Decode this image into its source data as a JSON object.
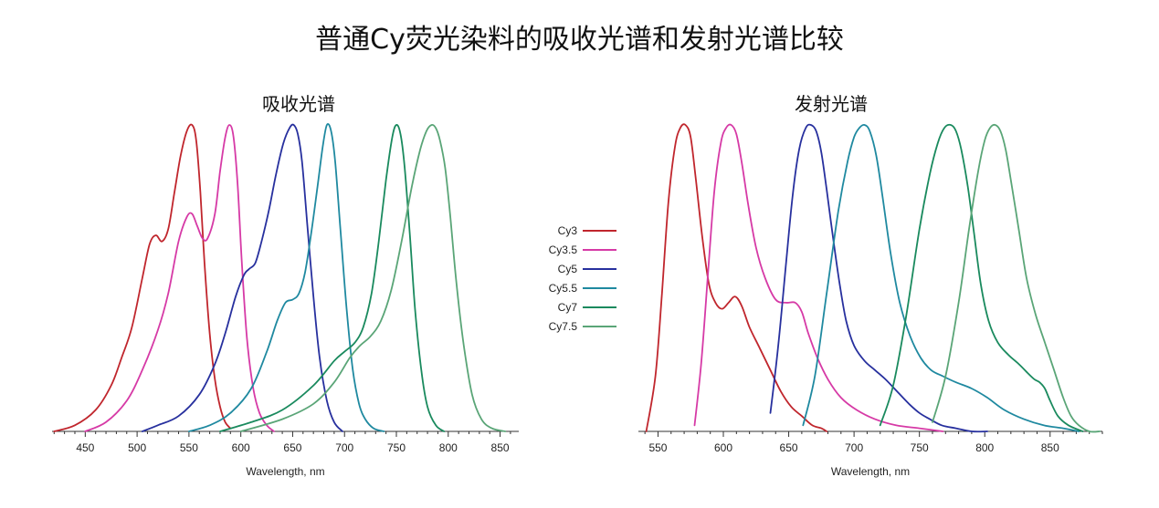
{
  "title": "普通Cy荧光染料的吸收光谱和发射光谱比较",
  "legend": [
    {
      "name": "Cy3",
      "color": "#c0262d"
    },
    {
      "name": "Cy3.5",
      "color": "#d63aa6"
    },
    {
      "name": "Cy5",
      "color": "#27309e"
    },
    {
      "name": "Cy5.5",
      "color": "#1f89a0"
    },
    {
      "name": "Cy7",
      "color": "#1a8a5e"
    },
    {
      "name": "Cy7.5",
      "color": "#5aa577"
    }
  ],
  "chart_data": [
    {
      "type": "line",
      "title": "吸收光谱",
      "xlabel": "Wavelength, nm",
      "ylabel": "",
      "xlim": [
        418,
        868
      ],
      "ylim": [
        0,
        1
      ],
      "xticks": [
        450,
        500,
        550,
        600,
        650,
        700,
        750,
        800,
        850
      ],
      "series": [
        {
          "name": "Cy3",
          "color": "#c0262d",
          "x": [
            420,
            440,
            460,
            475,
            485,
            495,
            505,
            512,
            518,
            524,
            530,
            536,
            542,
            548,
            553,
            557,
            561,
            565,
            570,
            575,
            580,
            585,
            590
          ],
          "y": [
            0.0,
            0.02,
            0.07,
            0.15,
            0.24,
            0.34,
            0.5,
            0.61,
            0.64,
            0.62,
            0.66,
            0.78,
            0.9,
            0.98,
            1.0,
            0.95,
            0.78,
            0.55,
            0.32,
            0.17,
            0.08,
            0.03,
            0.01
          ]
        },
        {
          "name": "Cy3.5",
          "color": "#d63aa6",
          "x": [
            450,
            470,
            490,
            505,
            520,
            530,
            540,
            548,
            553,
            558,
            563,
            568,
            575,
            580,
            585,
            589,
            593,
            597,
            601,
            606,
            612,
            618,
            625,
            632
          ],
          "y": [
            0.0,
            0.03,
            0.1,
            0.2,
            0.33,
            0.45,
            0.62,
            0.7,
            0.71,
            0.67,
            0.63,
            0.63,
            0.71,
            0.85,
            0.96,
            1.0,
            0.96,
            0.8,
            0.55,
            0.3,
            0.14,
            0.06,
            0.02,
            0.0
          ]
        },
        {
          "name": "Cy5",
          "color": "#27309e",
          "x": [
            505,
            520,
            540,
            560,
            575,
            585,
            595,
            603,
            608,
            614,
            620,
            627,
            634,
            641,
            647,
            651,
            655,
            659,
            664,
            670,
            676,
            683,
            690,
            698
          ],
          "y": [
            0.0,
            0.02,
            0.05,
            0.12,
            0.22,
            0.32,
            0.44,
            0.51,
            0.53,
            0.55,
            0.62,
            0.72,
            0.84,
            0.94,
            0.99,
            1.0,
            0.97,
            0.88,
            0.68,
            0.44,
            0.24,
            0.1,
            0.03,
            0.0
          ]
        },
        {
          "name": "Cy5.5",
          "color": "#1f89a0",
          "x": [
            550,
            570,
            590,
            610,
            625,
            635,
            643,
            650,
            656,
            662,
            668,
            674,
            679,
            683,
            687,
            691,
            696,
            702,
            708,
            714,
            720,
            728,
            738
          ],
          "y": [
            0.0,
            0.02,
            0.06,
            0.14,
            0.26,
            0.36,
            0.42,
            0.43,
            0.45,
            0.52,
            0.65,
            0.8,
            0.93,
            1.0,
            0.98,
            0.88,
            0.66,
            0.4,
            0.2,
            0.09,
            0.04,
            0.01,
            0.0
          ]
        },
        {
          "name": "Cy7",
          "color": "#1a8a5e",
          "x": [
            580,
            610,
            640,
            670,
            690,
            700,
            710,
            718,
            726,
            733,
            740,
            746,
            750,
            754,
            758,
            763,
            768,
            774,
            780,
            788,
            796
          ],
          "y": [
            0.0,
            0.03,
            0.07,
            0.15,
            0.23,
            0.26,
            0.29,
            0.34,
            0.45,
            0.62,
            0.82,
            0.96,
            1.0,
            0.97,
            0.86,
            0.64,
            0.4,
            0.2,
            0.08,
            0.02,
            0.0
          ]
        },
        {
          "name": "Cy7.5",
          "color": "#5aa577",
          "x": [
            600,
            640,
            670,
            690,
            705,
            715,
            725,
            735,
            745,
            755,
            765,
            773,
            779,
            784,
            788,
            792,
            797,
            802,
            808,
            815,
            823,
            832,
            842,
            855
          ],
          "y": [
            0.0,
            0.04,
            0.09,
            0.16,
            0.24,
            0.28,
            0.31,
            0.36,
            0.46,
            0.62,
            0.8,
            0.92,
            0.98,
            1.0,
            0.99,
            0.95,
            0.86,
            0.7,
            0.48,
            0.28,
            0.12,
            0.04,
            0.01,
            0.0
          ]
        }
      ]
    },
    {
      "type": "line",
      "title": "发射光谱",
      "xlabel": "Wavelength, nm",
      "ylabel": "",
      "xlim": [
        535,
        890
      ],
      "ylim": [
        0,
        1
      ],
      "xticks": [
        550,
        600,
        650,
        700,
        750,
        800,
        850
      ],
      "series": [
        {
          "name": "Cy3",
          "color": "#c0262d",
          "x": [
            541,
            548,
            553,
            558,
            563,
            567,
            571,
            575,
            579,
            584,
            589,
            594,
            599,
            604,
            609,
            614,
            620,
            628,
            636,
            644,
            652,
            660,
            668,
            675,
            679
          ],
          "y": [
            0.0,
            0.18,
            0.45,
            0.75,
            0.93,
            0.99,
            1.0,
            0.96,
            0.82,
            0.63,
            0.48,
            0.42,
            0.4,
            0.42,
            0.44,
            0.41,
            0.34,
            0.27,
            0.2,
            0.13,
            0.08,
            0.05,
            0.02,
            0.01,
            0.0
          ]
        },
        {
          "name": "Cy3.5",
          "color": "#d63aa6",
          "x": [
            578,
            583,
            588,
            593,
            598,
            602,
            606,
            610,
            614,
            619,
            625,
            632,
            640,
            648,
            655,
            660,
            665,
            672,
            680,
            690,
            702,
            716,
            732,
            750,
            768
          ],
          "y": [
            0.02,
            0.22,
            0.5,
            0.78,
            0.94,
            0.99,
            1.0,
            0.97,
            0.88,
            0.74,
            0.6,
            0.5,
            0.43,
            0.42,
            0.42,
            0.39,
            0.32,
            0.24,
            0.17,
            0.11,
            0.07,
            0.04,
            0.02,
            0.01,
            0.0
          ]
        },
        {
          "name": "Cy5",
          "color": "#27309e",
          "x": [
            636,
            642,
            648,
            653,
            658,
            663,
            667,
            671,
            675,
            679,
            684,
            689,
            694,
            700,
            708,
            716,
            724,
            733,
            742,
            750,
            758,
            767,
            778,
            790,
            802
          ],
          "y": [
            0.06,
            0.28,
            0.55,
            0.77,
            0.92,
            0.99,
            1.0,
            0.98,
            0.91,
            0.79,
            0.63,
            0.48,
            0.36,
            0.28,
            0.23,
            0.2,
            0.17,
            0.13,
            0.09,
            0.06,
            0.04,
            0.02,
            0.01,
            0.0,
            0.0
          ]
        },
        {
          "name": "Cy5.5",
          "color": "#1f89a0",
          "x": [
            661,
            670,
            679,
            688,
            695,
            700,
            704,
            708,
            712,
            717,
            722,
            728,
            735,
            743,
            751,
            759,
            768,
            778,
            790,
            802,
            815,
            830,
            845,
            860,
            872
          ],
          "y": [
            0.02,
            0.18,
            0.45,
            0.72,
            0.88,
            0.96,
            0.99,
            1.0,
            0.98,
            0.9,
            0.76,
            0.58,
            0.42,
            0.31,
            0.24,
            0.2,
            0.18,
            0.16,
            0.14,
            0.11,
            0.07,
            0.04,
            0.02,
            0.01,
            0.0
          ]
        },
        {
          "name": "Cy7",
          "color": "#1a8a5e",
          "x": [
            720,
            730,
            740,
            750,
            758,
            764,
            769,
            774,
            778,
            782,
            787,
            792,
            797,
            803,
            810,
            818,
            826,
            833,
            838,
            842,
            846,
            850,
            856,
            864,
            875
          ],
          "y": [
            0.02,
            0.15,
            0.38,
            0.66,
            0.84,
            0.94,
            0.99,
            1.0,
            0.98,
            0.92,
            0.8,
            0.64,
            0.48,
            0.36,
            0.29,
            0.25,
            0.22,
            0.19,
            0.17,
            0.16,
            0.14,
            0.1,
            0.05,
            0.02,
            0.0
          ]
        },
        {
          "name": "Cy7.5",
          "color": "#5aa577",
          "x": [
            760,
            770,
            780,
            788,
            795,
            800,
            804,
            808,
            812,
            816,
            820,
            826,
            832,
            839,
            846,
            853,
            860,
            866,
            872,
            880,
            888
          ],
          "y": [
            0.03,
            0.18,
            0.42,
            0.66,
            0.85,
            0.95,
            0.99,
            1.0,
            0.98,
            0.92,
            0.82,
            0.66,
            0.5,
            0.38,
            0.29,
            0.2,
            0.11,
            0.05,
            0.02,
            0.0,
            0.0
          ]
        }
      ]
    }
  ]
}
